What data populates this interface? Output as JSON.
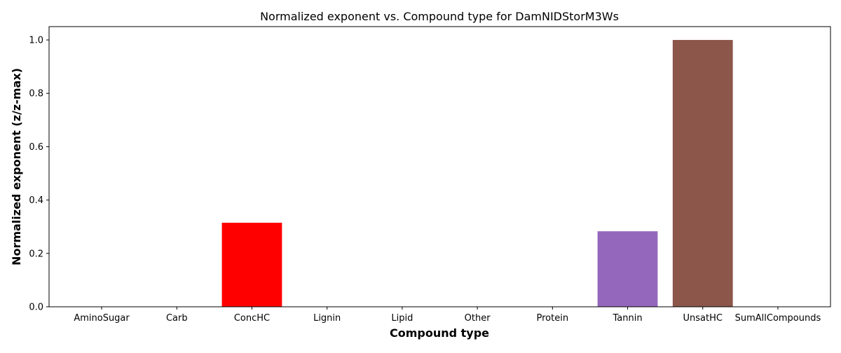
{
  "chart_data": {
    "type": "bar",
    "title": "Normalized exponent vs. Compound type for DamNIDStorM3Ws",
    "xlabel": "Compound type",
    "ylabel": "Normalized exponent (z/z-max)",
    "categories": [
      "AminoSugar",
      "Carb",
      "ConcHC",
      "Lignin",
      "Lipid",
      "Other",
      "Protein",
      "Tannin",
      "UnsatHC",
      "SumAllCompounds"
    ],
    "values": [
      0,
      0,
      0.315,
      0,
      0,
      0,
      0,
      0.283,
      1.0,
      0
    ],
    "colors": [
      "#1f77b4",
      "#ff7f0e",
      "#ff0000",
      "#d62728",
      "#9467bd",
      "#8c564b",
      "#e377c2",
      "#9467bd",
      "#8c564b",
      "#7f7f7f"
    ],
    "ylim": [
      0,
      1.05
    ],
    "yticks": [
      0.0,
      0.2,
      0.4,
      0.6,
      0.8,
      1.0
    ],
    "ytick_labels": [
      "0.0",
      "0.2",
      "0.4",
      "0.6",
      "0.8",
      "1.0"
    ],
    "grid": false,
    "legend": "none"
  }
}
